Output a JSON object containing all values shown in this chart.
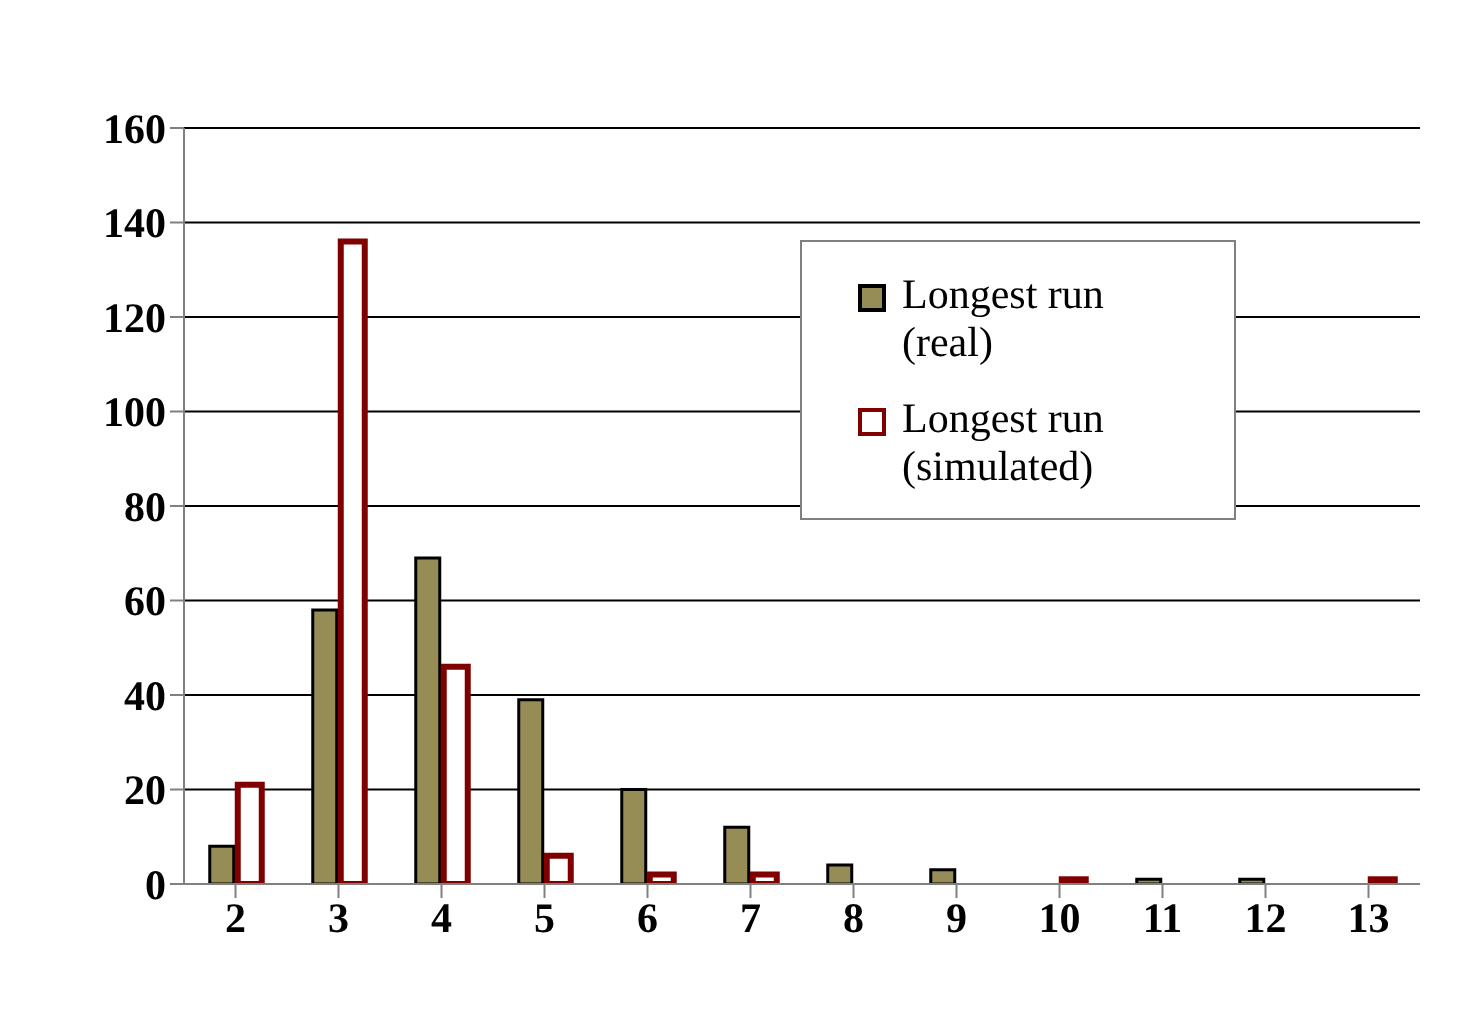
{
  "chart_data": {
    "type": "bar",
    "categories": [
      "2",
      "3",
      "4",
      "5",
      "6",
      "7",
      "8",
      "9",
      "10",
      "11",
      "12",
      "13"
    ],
    "series": [
      {
        "name": "Longest run (real)",
        "color": "#968c55",
        "values": [
          8,
          58,
          69,
          39,
          20,
          12,
          4,
          3,
          0,
          1,
          1,
          0
        ]
      },
      {
        "name": "Longest run (simulated)",
        "color": "#800000",
        "values": [
          21,
          136,
          46,
          6,
          2,
          2,
          0,
          0,
          1,
          0,
          0,
          1
        ]
      }
    ],
    "ylim": [
      0,
      160
    ],
    "yticks": [
      0,
      20,
      40,
      60,
      80,
      100,
      120,
      140,
      160
    ],
    "grid": "y",
    "legend": "top right"
  }
}
